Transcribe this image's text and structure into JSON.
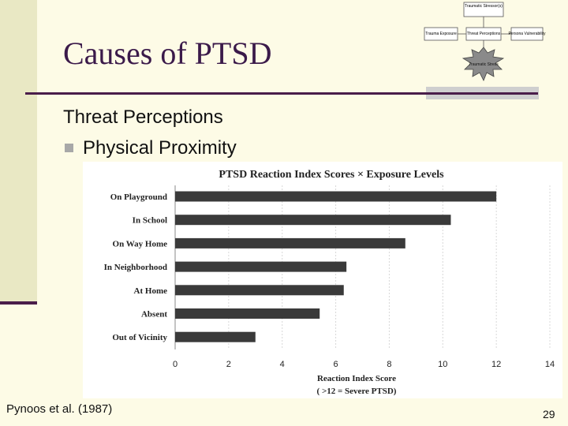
{
  "slide": {
    "title": "Causes of PTSD",
    "heading": "Threat Perceptions",
    "bullet": "Physical Proximity",
    "citation": "Pynoos et al. (1987)",
    "page_number": "29"
  },
  "diagram": {
    "top_box": "Traumatic Stressor(s)",
    "left_box": "Trauma Exposure",
    "middle_box": "Threat Perceptions",
    "right_box": "Persona Vulnerability",
    "burst": "Traumatic Stress"
  },
  "chart_data": {
    "type": "bar",
    "orientation": "horizontal",
    "title": "PTSD Reaction Index Scores × Exposure Levels",
    "categories": [
      "On Playground",
      "In School",
      "On Way Home",
      "In Neighborhood",
      "At Home",
      "Absent",
      "Out of Vicinity"
    ],
    "values": [
      12.0,
      10.3,
      8.6,
      6.4,
      6.3,
      5.4,
      3.0
    ],
    "xlabel": "Reaction Index Score",
    "xlabel_note": "( >12 = Severe PTSD)",
    "xlim": [
      0,
      14
    ],
    "xticks": [
      0,
      2,
      4,
      6,
      8,
      10,
      12,
      14
    ],
    "colors": {
      "bar": "#3a3a3a",
      "panel": "#ffffff"
    }
  }
}
